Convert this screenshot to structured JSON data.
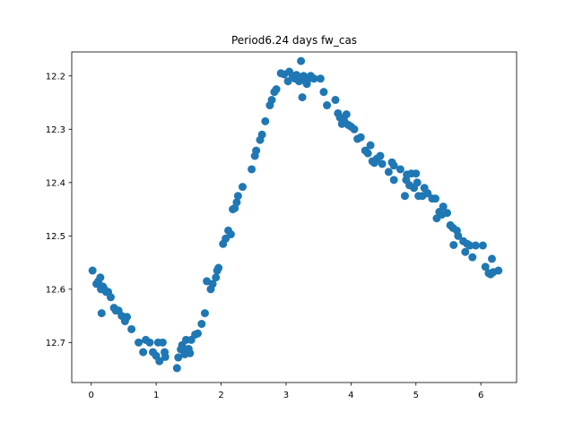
{
  "chart_data": {
    "type": "scatter",
    "title": "Period6.24 days fw_cas",
    "xlabel": "",
    "ylabel": "",
    "xlim": [
      -0.3,
      6.55
    ],
    "ylim": [
      12.775,
      12.155
    ],
    "y_inverted": true,
    "grid": false,
    "marker_color": "#1f77b4",
    "xticks": [
      0,
      1,
      2,
      3,
      4,
      5,
      6
    ],
    "xtick_labels": [
      "0",
      "1",
      "2",
      "3",
      "4",
      "5",
      "6"
    ],
    "yticks": [
      12.2,
      12.3,
      12.4,
      12.5,
      12.6,
      12.7
    ],
    "ytick_labels": [
      "12.2",
      "12.3",
      "12.4",
      "12.5",
      "12.6",
      "12.7"
    ],
    "points": [
      [
        0.02,
        12.565
      ],
      [
        0.08,
        12.59
      ],
      [
        0.11,
        12.585
      ],
      [
        0.14,
        12.578
      ],
      [
        0.15,
        12.6
      ],
      [
        0.16,
        12.645
      ],
      [
        0.18,
        12.595
      ],
      [
        0.2,
        12.6
      ],
      [
        0.23,
        12.605
      ],
      [
        0.26,
        12.605
      ],
      [
        0.3,
        12.615
      ],
      [
        0.35,
        12.635
      ],
      [
        0.38,
        12.64
      ],
      [
        0.42,
        12.64
      ],
      [
        0.47,
        12.65
      ],
      [
        0.52,
        12.66
      ],
      [
        0.55,
        12.652
      ],
      [
        0.62,
        12.675
      ],
      [
        0.73,
        12.7
      ],
      [
        0.8,
        12.718
      ],
      [
        0.84,
        12.695
      ],
      [
        0.9,
        12.7
      ],
      [
        0.95,
        12.718
      ],
      [
        1.0,
        12.725
      ],
      [
        1.03,
        12.7
      ],
      [
        1.05,
        12.735
      ],
      [
        1.1,
        12.7
      ],
      [
        1.13,
        12.718
      ],
      [
        1.14,
        12.727
      ],
      [
        1.32,
        12.748
      ],
      [
        1.34,
        12.728
      ],
      [
        1.38,
        12.713
      ],
      [
        1.4,
        12.705
      ],
      [
        1.44,
        12.722
      ],
      [
        1.46,
        12.695
      ],
      [
        1.5,
        12.712
      ],
      [
        1.52,
        12.72
      ],
      [
        1.54,
        12.695
      ],
      [
        1.6,
        12.685
      ],
      [
        1.64,
        12.683
      ],
      [
        1.7,
        12.665
      ],
      [
        1.75,
        12.645
      ],
      [
        1.78,
        12.585
      ],
      [
        1.84,
        12.6
      ],
      [
        1.87,
        12.59
      ],
      [
        1.92,
        12.578
      ],
      [
        1.94,
        12.565
      ],
      [
        1.96,
        12.56
      ],
      [
        2.03,
        12.515
      ],
      [
        2.07,
        12.505
      ],
      [
        2.11,
        12.49
      ],
      [
        2.15,
        12.497
      ],
      [
        2.18,
        12.45
      ],
      [
        2.21,
        12.448
      ],
      [
        2.24,
        12.437
      ],
      [
        2.26,
        12.425
      ],
      [
        2.33,
        12.408
      ],
      [
        2.47,
        12.375
      ],
      [
        2.52,
        12.35
      ],
      [
        2.54,
        12.34
      ],
      [
        2.6,
        12.32
      ],
      [
        2.63,
        12.31
      ],
      [
        2.68,
        12.285
      ],
      [
        2.75,
        12.255
      ],
      [
        2.78,
        12.245
      ],
      [
        2.82,
        12.23
      ],
      [
        2.85,
        12.225
      ],
      [
        2.92,
        12.195
      ],
      [
        2.97,
        12.197
      ],
      [
        3.03,
        12.21
      ],
      [
        3.05,
        12.192
      ],
      [
        3.1,
        12.2
      ],
      [
        3.14,
        12.205
      ],
      [
        3.16,
        12.198
      ],
      [
        3.2,
        12.21
      ],
      [
        3.23,
        12.172
      ],
      [
        3.25,
        12.24
      ],
      [
        3.27,
        12.2
      ],
      [
        3.3,
        12.21
      ],
      [
        3.32,
        12.215
      ],
      [
        3.35,
        12.205
      ],
      [
        3.38,
        12.2
      ],
      [
        3.43,
        12.205
      ],
      [
        3.53,
        12.205
      ],
      [
        3.58,
        12.23
      ],
      [
        3.63,
        12.255
      ],
      [
        3.76,
        12.245
      ],
      [
        3.8,
        12.27
      ],
      [
        3.83,
        12.278
      ],
      [
        3.86,
        12.29
      ],
      [
        3.9,
        12.285
      ],
      [
        3.93,
        12.272
      ],
      [
        3.96,
        12.292
      ],
      [
        4.0,
        12.295
      ],
      [
        4.05,
        12.3
      ],
      [
        4.1,
        12.318
      ],
      [
        4.15,
        12.315
      ],
      [
        4.22,
        12.34
      ],
      [
        4.26,
        12.345
      ],
      [
        4.3,
        12.33
      ],
      [
        4.33,
        12.36
      ],
      [
        4.36,
        12.363
      ],
      [
        4.4,
        12.355
      ],
      [
        4.45,
        12.35
      ],
      [
        4.48,
        12.365
      ],
      [
        4.58,
        12.38
      ],
      [
        4.63,
        12.362
      ],
      [
        4.66,
        12.368
      ],
      [
        4.66,
        12.395
      ],
      [
        4.76,
        12.375
      ],
      [
        4.83,
        12.425
      ],
      [
        4.85,
        12.395
      ],
      [
        4.86,
        12.385
      ],
      [
        4.9,
        12.405
      ],
      [
        4.93,
        12.383
      ],
      [
        4.97,
        12.41
      ],
      [
        5.0,
        12.383
      ],
      [
        5.02,
        12.4
      ],
      [
        5.04,
        12.425
      ],
      [
        5.1,
        12.425
      ],
      [
        5.13,
        12.41
      ],
      [
        5.18,
        12.42
      ],
      [
        5.25,
        12.43
      ],
      [
        5.3,
        12.43
      ],
      [
        5.32,
        12.467
      ],
      [
        5.36,
        12.455
      ],
      [
        5.4,
        12.46
      ],
      [
        5.42,
        12.445
      ],
      [
        5.48,
        12.457
      ],
      [
        5.53,
        12.48
      ],
      [
        5.57,
        12.485
      ],
      [
        5.58,
        12.517
      ],
      [
        5.63,
        12.49
      ],
      [
        5.65,
        12.5
      ],
      [
        5.73,
        12.51
      ],
      [
        5.76,
        12.53
      ],
      [
        5.79,
        12.515
      ],
      [
        5.83,
        12.518
      ],
      [
        5.87,
        12.54
      ],
      [
        5.92,
        12.518
      ],
      [
        6.03,
        12.518
      ],
      [
        6.07,
        12.558
      ],
      [
        6.12,
        12.57
      ],
      [
        6.15,
        12.572
      ],
      [
        6.17,
        12.543
      ],
      [
        6.19,
        12.568
      ],
      [
        6.27,
        12.565
      ]
    ]
  }
}
